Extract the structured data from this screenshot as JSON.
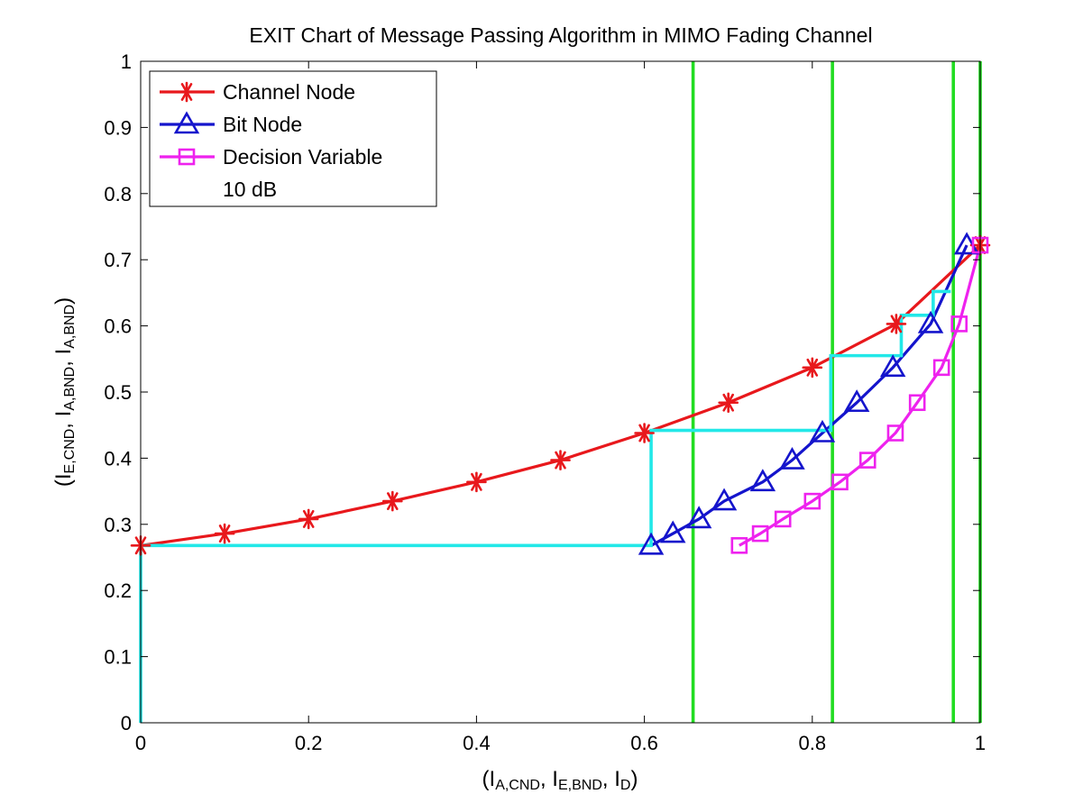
{
  "chart_data": {
    "type": "line",
    "title": "EXIT Chart of Message Passing Algorithm in MIMO Fading Channel",
    "xlabel": {
      "parts": [
        [
          "(I",
          ""
        ],
        [
          "A,CND",
          "sub"
        ],
        [
          ",  I",
          ""
        ],
        [
          "E,BND",
          "sub"
        ],
        [
          ",  I",
          ""
        ],
        [
          "D",
          "sub"
        ],
        [
          ")",
          ""
        ]
      ]
    },
    "ylabel": {
      "parts": [
        [
          "(I",
          ""
        ],
        [
          "E,CND",
          "sub"
        ],
        [
          ",  I",
          ""
        ],
        [
          "A,BND",
          "sub"
        ],
        [
          ",  I",
          ""
        ],
        [
          "A,BND",
          "sub"
        ],
        [
          ")",
          ""
        ]
      ]
    },
    "xlim": [
      0,
      1
    ],
    "ylim": [
      0,
      1
    ],
    "xticks": [
      "0",
      "0.2",
      "0.4",
      "0.6",
      "0.8",
      "1"
    ],
    "xtick_values": [
      0,
      0.2,
      0.4,
      0.6,
      0.8,
      1
    ],
    "yticks": [
      "0",
      "0.1",
      "0.2",
      "0.3",
      "0.4",
      "0.5",
      "0.6",
      "0.7",
      "0.8",
      "0.9",
      "1"
    ],
    "ytick_values": [
      0,
      0.1,
      0.2,
      0.3,
      0.4,
      0.5,
      0.6,
      0.7,
      0.8,
      0.9,
      1
    ],
    "grid": false,
    "legend_position": "top-left",
    "legend_entries": [
      "Channel Node",
      "Bit Node",
      "Decision Variable",
      "10 dB"
    ],
    "series": [
      {
        "name": "Channel Node",
        "color": "#e8181c",
        "marker": "asterisk",
        "x": [
          0,
          0.1,
          0.2,
          0.3,
          0.4,
          0.5,
          0.6,
          0.7,
          0.8,
          0.9,
          1.0
        ],
        "y": [
          0.268,
          0.286,
          0.308,
          0.335,
          0.364,
          0.397,
          0.438,
          0.484,
          0.537,
          0.603,
          0.722
        ]
      },
      {
        "name": "Bit Node",
        "color": "#1414cc",
        "marker": "triangle",
        "x": [
          0.608,
          0.634,
          0.665,
          0.695,
          0.741,
          0.776,
          0.812,
          0.853,
          0.896,
          0.941,
          0.984
        ],
        "y": [
          0.268,
          0.286,
          0.308,
          0.335,
          0.364,
          0.397,
          0.438,
          0.484,
          0.537,
          0.603,
          0.722
        ]
      },
      {
        "name": "Decision Variable",
        "color": "#ee22ee",
        "marker": "square",
        "x": [
          0.713,
          0.738,
          0.765,
          0.8,
          0.833,
          0.866,
          0.899,
          0.925,
          0.954,
          0.975,
          1.0
        ],
        "y": [
          0.268,
          0.286,
          0.308,
          0.335,
          0.364,
          0.397,
          0.438,
          0.484,
          0.537,
          0.603,
          0.722
        ]
      }
    ],
    "trajectory": {
      "color": "#22e8e8",
      "x": [
        0,
        0,
        0.608,
        0.608,
        0.822,
        0.822,
        0.906,
        0.906,
        0.944,
        0.944,
        0.965
      ],
      "y": [
        0,
        0.268,
        0.268,
        0.442,
        0.442,
        0.555,
        0.555,
        0.616,
        0.616,
        0.652,
        0.652
      ]
    },
    "vlines": {
      "color": "#22dd22",
      "x": [
        0.658,
        0.824,
        0.968,
        1.0
      ]
    }
  }
}
